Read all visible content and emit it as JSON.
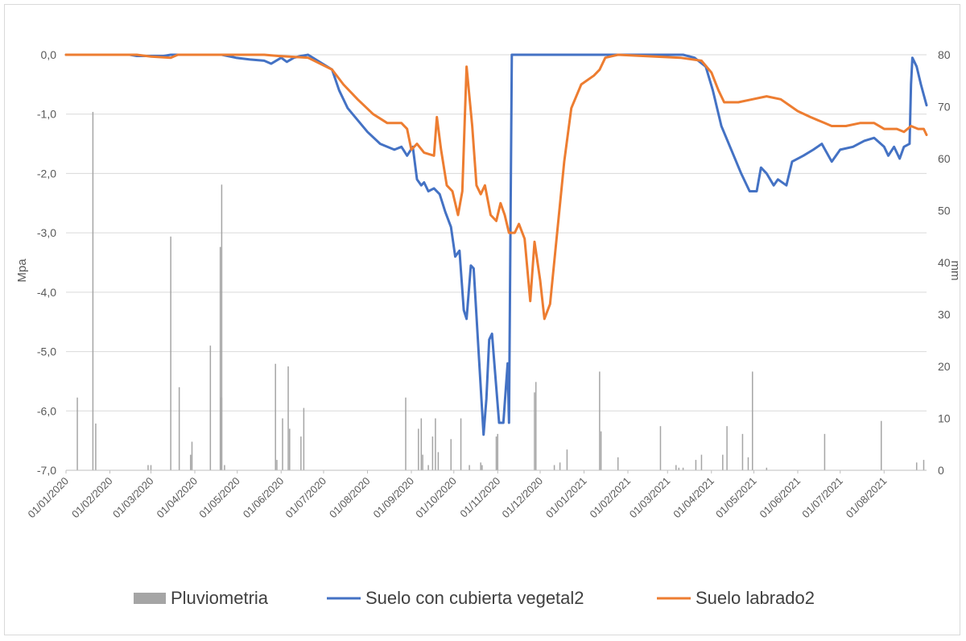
{
  "chart_data": {
    "type": "bar+line",
    "title": "",
    "ylabel_left": "Mpa",
    "ylabel_right": "mm",
    "ylim_left": [
      -7,
      0
    ],
    "ylim_right": [
      0,
      80
    ],
    "yticks_left": [
      "0,0",
      "-1,0",
      "-2,0",
      "-3,0",
      "-4,0",
      "-5,0",
      "-6,0",
      "-7,0"
    ],
    "yticks_right": [
      "80",
      "70",
      "60",
      "50",
      "40",
      "30",
      "20",
      "10",
      "0"
    ],
    "xlim": [
      "2020-01-01",
      "2021-08-31"
    ],
    "xticks": [
      "01/01/2020",
      "01/02/2020",
      "01/03/2020",
      "01/04/2020",
      "01/05/2020",
      "01/06/2020",
      "01/07/2020",
      "01/08/2020",
      "01/09/2020",
      "01/10/2020",
      "01/11/2020",
      "01/12/2020",
      "01/01/2021",
      "01/02/2021",
      "01/03/2021",
      "01/04/2021",
      "01/05/2021",
      "01/06/2021",
      "01/07/2021",
      "01/08/2021"
    ],
    "grid": true,
    "legend_position": "bottom",
    "series": [
      {
        "name": "Pluviometria",
        "type": "bar",
        "axis": "right",
        "color": "#a5a5a5",
        "points": [
          [
            "2020-01-09",
            14
          ],
          [
            "2020-01-20",
            69
          ],
          [
            "2020-01-22",
            9
          ],
          [
            "2020-02-28",
            1
          ],
          [
            "2020-03-01",
            1
          ],
          [
            "2020-03-15",
            45
          ],
          [
            "2020-03-21",
            16
          ],
          [
            "2020-03-29",
            3
          ],
          [
            "2020-03-30",
            5.5
          ],
          [
            "2020-04-12",
            24
          ],
          [
            "2020-04-19",
            43
          ],
          [
            "2020-04-20",
            55
          ],
          [
            "2020-04-20",
            14
          ],
          [
            "2020-04-22",
            1
          ],
          [
            "2020-05-28",
            20.5
          ],
          [
            "2020-05-29",
            2
          ],
          [
            "2020-06-02",
            10
          ],
          [
            "2020-06-06",
            20
          ],
          [
            "2020-06-07",
            8
          ],
          [
            "2020-06-15",
            6.5
          ],
          [
            "2020-06-17",
            12
          ],
          [
            "2020-08-28",
            14
          ],
          [
            "2020-09-06",
            8
          ],
          [
            "2020-09-08",
            10
          ],
          [
            "2020-09-09",
            3
          ],
          [
            "2020-09-13",
            1
          ],
          [
            "2020-09-16",
            6.5
          ],
          [
            "2020-09-18",
            10
          ],
          [
            "2020-09-20",
            3.5
          ],
          [
            "2020-09-29",
            6
          ],
          [
            "2020-10-06",
            10
          ],
          [
            "2020-10-12",
            1
          ],
          [
            "2020-10-20",
            1.5
          ],
          [
            "2020-10-21",
            1
          ],
          [
            "2020-10-31",
            6.5
          ],
          [
            "2020-11-01",
            7
          ],
          [
            "2020-11-27",
            15
          ],
          [
            "2020-11-28",
            17
          ],
          [
            "2020-12-11",
            1
          ],
          [
            "2020-12-15",
            1.5
          ],
          [
            "2020-12-20",
            4
          ],
          [
            "2021-01-12",
            19
          ],
          [
            "2021-01-13",
            7.5
          ],
          [
            "2021-01-25",
            2.5
          ],
          [
            "2021-02-24",
            8.5
          ],
          [
            "2021-03-07",
            1
          ],
          [
            "2021-03-09",
            0.5
          ],
          [
            "2021-03-12",
            0.5
          ],
          [
            "2021-03-21",
            2
          ],
          [
            "2021-03-25",
            3
          ],
          [
            "2021-04-09",
            3
          ],
          [
            "2021-04-12",
            8.5
          ],
          [
            "2021-04-23",
            7
          ],
          [
            "2021-04-27",
            2.5
          ],
          [
            "2021-04-30",
            19
          ],
          [
            "2021-05-10",
            0.5
          ],
          [
            "2021-06-20",
            7
          ],
          [
            "2021-07-30",
            9.5
          ],
          [
            "2021-08-24",
            1.5
          ],
          [
            "2021-08-29",
            2
          ]
        ]
      },
      {
        "name": "Suelo con cubierta vegetal2",
        "type": "line",
        "axis": "left",
        "color": "#4472c4",
        "points": [
          [
            "2020-01-01",
            0
          ],
          [
            "2020-02-15",
            0
          ],
          [
            "2020-02-20",
            -0.02
          ],
          [
            "2020-03-10",
            -0.02
          ],
          [
            "2020-03-15",
            0
          ],
          [
            "2020-04-20",
            0
          ],
          [
            "2020-04-30",
            -0.05
          ],
          [
            "2020-05-10",
            -0.08
          ],
          [
            "2020-05-20",
            -0.1
          ],
          [
            "2020-05-25",
            -0.15
          ],
          [
            "2020-06-01",
            -0.05
          ],
          [
            "2020-06-05",
            -0.12
          ],
          [
            "2020-06-10",
            -0.05
          ],
          [
            "2020-06-15",
            -0.02
          ],
          [
            "2020-06-20",
            0
          ],
          [
            "2020-07-07",
            -0.25
          ],
          [
            "2020-07-12",
            -0.6
          ],
          [
            "2020-07-18",
            -0.9
          ],
          [
            "2020-07-25",
            -1.1
          ],
          [
            "2020-08-01",
            -1.3
          ],
          [
            "2020-08-10",
            -1.5
          ],
          [
            "2020-08-20",
            -1.6
          ],
          [
            "2020-08-25",
            -1.55
          ],
          [
            "2020-08-29",
            -1.7
          ],
          [
            "2020-09-02",
            -1.55
          ],
          [
            "2020-09-05",
            -2.1
          ],
          [
            "2020-09-08",
            -2.2
          ],
          [
            "2020-09-10",
            -2.15
          ],
          [
            "2020-09-13",
            -2.3
          ],
          [
            "2020-09-17",
            -2.25
          ],
          [
            "2020-09-21",
            -2.35
          ],
          [
            "2020-09-25",
            -2.65
          ],
          [
            "2020-09-29",
            -2.9
          ],
          [
            "2020-10-02",
            -3.4
          ],
          [
            "2020-10-05",
            -3.3
          ],
          [
            "2020-10-08",
            -4.3
          ],
          [
            "2020-10-10",
            -4.45
          ],
          [
            "2020-10-13",
            -3.55
          ],
          [
            "2020-10-15",
            -3.6
          ],
          [
            "2020-10-19",
            -5.2
          ],
          [
            "2020-10-22",
            -6.4
          ],
          [
            "2020-10-24",
            -5.8
          ],
          [
            "2020-10-26",
            -4.8
          ],
          [
            "2020-10-28",
            -4.7
          ],
          [
            "2020-10-30",
            -5.3
          ],
          [
            "2020-11-02",
            -6.2
          ],
          [
            "2020-11-05",
            -6.2
          ],
          [
            "2020-11-08",
            -5.2
          ],
          [
            "2020-11-09",
            -6.2
          ],
          [
            "2020-11-11",
            0
          ],
          [
            "2021-03-12",
            0
          ],
          [
            "2021-03-20",
            -0.05
          ],
          [
            "2021-03-28",
            -0.2
          ],
          [
            "2021-04-02",
            -0.6
          ],
          [
            "2021-04-08",
            -1.2
          ],
          [
            "2021-04-15",
            -1.6
          ],
          [
            "2021-04-22",
            -2.0
          ],
          [
            "2021-04-28",
            -2.3
          ],
          [
            "2021-05-03",
            -2.3
          ],
          [
            "2021-05-06",
            -1.9
          ],
          [
            "2021-05-10",
            -2.0
          ],
          [
            "2021-05-15",
            -2.2
          ],
          [
            "2021-05-18",
            -2.1
          ],
          [
            "2021-05-24",
            -2.2
          ],
          [
            "2021-05-28",
            -1.8
          ],
          [
            "2021-06-05",
            -1.7
          ],
          [
            "2021-06-12",
            -1.6
          ],
          [
            "2021-06-18",
            -1.5
          ],
          [
            "2021-06-25",
            -1.8
          ],
          [
            "2021-07-01",
            -1.6
          ],
          [
            "2021-07-10",
            -1.55
          ],
          [
            "2021-07-18",
            -1.45
          ],
          [
            "2021-07-25",
            -1.4
          ],
          [
            "2021-08-01",
            -1.55
          ],
          [
            "2021-08-04",
            -1.7
          ],
          [
            "2021-08-08",
            -1.55
          ],
          [
            "2021-08-12",
            -1.75
          ],
          [
            "2021-08-15",
            -1.55
          ],
          [
            "2021-08-19",
            -1.5
          ],
          [
            "2021-08-20",
            -0.5
          ],
          [
            "2021-08-21",
            -0.05
          ],
          [
            "2021-08-24",
            -0.2
          ],
          [
            "2021-08-27",
            -0.5
          ],
          [
            "2021-08-31",
            -0.85
          ]
        ]
      },
      {
        "name": "Suelo labrado2",
        "type": "line",
        "axis": "left",
        "color": "#ed7d31",
        "points": [
          [
            "2020-01-01",
            0
          ],
          [
            "2020-02-20",
            0
          ],
          [
            "2020-03-01",
            -0.03
          ],
          [
            "2020-03-15",
            -0.05
          ],
          [
            "2020-03-20",
            0
          ],
          [
            "2020-05-20",
            0
          ],
          [
            "2020-05-30",
            -0.02
          ],
          [
            "2020-06-20",
            -0.05
          ],
          [
            "2020-07-07",
            -0.25
          ],
          [
            "2020-07-15",
            -0.5
          ],
          [
            "2020-07-25",
            -0.75
          ],
          [
            "2020-08-05",
            -1.0
          ],
          [
            "2020-08-15",
            -1.15
          ],
          [
            "2020-08-25",
            -1.15
          ],
          [
            "2020-08-29",
            -1.25
          ],
          [
            "2020-09-01",
            -1.6
          ],
          [
            "2020-09-05",
            -1.5
          ],
          [
            "2020-09-10",
            -1.65
          ],
          [
            "2020-09-17",
            -1.7
          ],
          [
            "2020-09-19",
            -1.05
          ],
          [
            "2020-09-22",
            -1.6
          ],
          [
            "2020-09-26",
            -2.2
          ],
          [
            "2020-09-30",
            -2.3
          ],
          [
            "2020-10-04",
            -2.7
          ],
          [
            "2020-10-07",
            -2.3
          ],
          [
            "2020-10-10",
            -0.2
          ],
          [
            "2020-10-14",
            -1.2
          ],
          [
            "2020-10-17",
            -2.2
          ],
          [
            "2020-10-20",
            -2.35
          ],
          [
            "2020-10-23",
            -2.2
          ],
          [
            "2020-10-27",
            -2.7
          ],
          [
            "2020-10-31",
            -2.8
          ],
          [
            "2020-11-03",
            -2.5
          ],
          [
            "2020-11-06",
            -2.7
          ],
          [
            "2020-11-09",
            -3.0
          ],
          [
            "2020-11-13",
            -3.0
          ],
          [
            "2020-11-16",
            -2.85
          ],
          [
            "2020-11-20",
            -3.1
          ],
          [
            "2020-11-24",
            -4.15
          ],
          [
            "2020-11-27",
            -3.15
          ],
          [
            "2020-12-01",
            -3.8
          ],
          [
            "2020-12-04",
            -4.45
          ],
          [
            "2020-12-08",
            -4.2
          ],
          [
            "2020-12-13",
            -3.0
          ],
          [
            "2020-12-18",
            -1.8
          ],
          [
            "2020-12-23",
            -0.9
          ],
          [
            "2020-12-30",
            -0.5
          ],
          [
            "2021-01-08",
            -0.35
          ],
          [
            "2021-01-12",
            -0.25
          ],
          [
            "2021-01-16",
            -0.05
          ],
          [
            "2021-01-25",
            0
          ],
          [
            "2021-03-10",
            -0.05
          ],
          [
            "2021-03-25",
            -0.1
          ],
          [
            "2021-04-01",
            -0.3
          ],
          [
            "2021-04-06",
            -0.6
          ],
          [
            "2021-04-10",
            -0.8
          ],
          [
            "2021-04-20",
            -0.8
          ],
          [
            "2021-04-30",
            -0.75
          ],
          [
            "2021-05-10",
            -0.7
          ],
          [
            "2021-05-20",
            -0.75
          ],
          [
            "2021-06-01",
            -0.95
          ],
          [
            "2021-06-10",
            -1.05
          ],
          [
            "2021-06-20",
            -1.15
          ],
          [
            "2021-06-25",
            -1.2
          ],
          [
            "2021-07-05",
            -1.2
          ],
          [
            "2021-07-15",
            -1.15
          ],
          [
            "2021-07-25",
            -1.15
          ],
          [
            "2021-08-01",
            -1.25
          ],
          [
            "2021-08-10",
            -1.25
          ],
          [
            "2021-08-15",
            -1.3
          ],
          [
            "2021-08-20",
            -1.2
          ],
          [
            "2021-08-25",
            -1.25
          ],
          [
            "2021-08-29",
            -1.25
          ],
          [
            "2021-08-31",
            -1.35
          ]
        ]
      }
    ]
  }
}
